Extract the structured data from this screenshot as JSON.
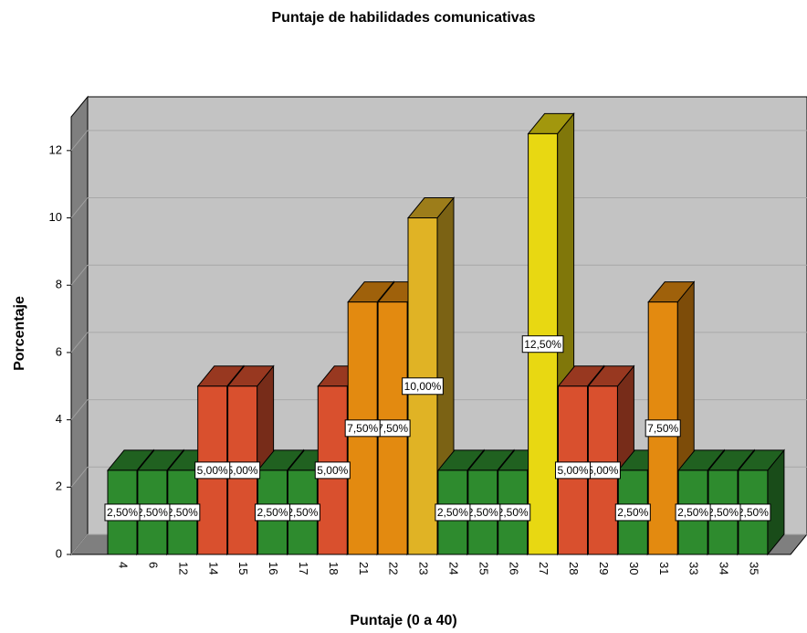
{
  "chart_data": {
    "type": "bar3d",
    "title": "Puntaje de habilidades comunicativas",
    "x_label": "Puntaje (0 a 40)",
    "y_label": "Porcentaje",
    "categories": [
      "4",
      "6",
      "12",
      "14",
      "15",
      "16",
      "17",
      "18",
      "21",
      "22",
      "23",
      "24",
      "25",
      "26",
      "27",
      "28",
      "29",
      "30",
      "31",
      "33",
      "34",
      "35"
    ],
    "values": [
      2.5,
      2.5,
      2.5,
      5,
      5,
      2.5,
      2.5,
      5,
      7.5,
      7.5,
      10,
      2.5,
      2.5,
      2.5,
      12.5,
      5,
      5,
      2.5,
      7.5,
      2.5,
      2.5,
      2.5
    ],
    "value_labels": [
      "2,50%",
      "2,50%",
      "2,50%",
      "5,00%",
      "5,00%",
      "2,50%",
      "2,50%",
      "5,00%",
      "7,50%",
      "7,50%",
      "10,00%",
      "2,50%",
      "2,50%",
      "2,50%",
      "12,50%",
      "5,00%",
      "5,00%",
      "2,50%",
      "7,50%",
      "2,50%",
      "2,50%",
      "2,50%"
    ],
    "colors": [
      "#2e8b2e",
      "#2e8b2e",
      "#2e8b2e",
      "#d9502e",
      "#d9502e",
      "#2e8b2e",
      "#2e8b2e",
      "#d9502e",
      "#e38a10",
      "#e38a10",
      "#e0b325",
      "#2e8b2e",
      "#2e8b2e",
      "#2e8b2e",
      "#e8d812",
      "#d9502e",
      "#d9502e",
      "#2e8b2e",
      "#e38a10",
      "#2e8b2e",
      "#2e8b2e",
      "#2e8b2e"
    ],
    "ylim": [
      0,
      13
    ],
    "yticks": [
      0,
      2,
      4,
      6,
      8,
      10,
      12
    ],
    "grid": true
  }
}
